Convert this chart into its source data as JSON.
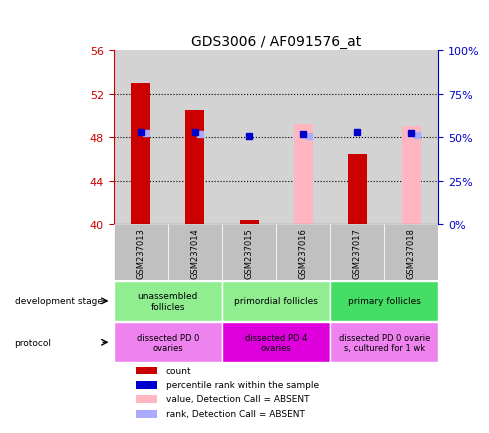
{
  "title": "GDS3006 / AF091576_at",
  "samples": [
    "GSM237013",
    "GSM237014",
    "GSM237015",
    "GSM237016",
    "GSM237017",
    "GSM237018"
  ],
  "ylim_left": [
    40,
    56
  ],
  "ylim_right": [
    0,
    100
  ],
  "yticks_left": [
    40,
    44,
    48,
    52,
    56
  ],
  "yticks_right": [
    0,
    25,
    50,
    75,
    100
  ],
  "ytick_labels_right": [
    "0%",
    "25%",
    "50%",
    "75%",
    "100%"
  ],
  "red_bars": [
    53.0,
    50.5,
    40.4,
    null,
    46.5,
    null
  ],
  "pink_bars": [
    null,
    null,
    null,
    49.2,
    null,
    49.0
  ],
  "blue_squares_y": [
    48.5,
    48.5,
    48.1,
    48.3,
    48.5,
    48.4
  ],
  "light_blue_squares_y": [
    48.4,
    48.35,
    null,
    48.15,
    null,
    48.2
  ],
  "bar_color_red": "#CC0000",
  "bar_color_pink": "#FFB6C1",
  "square_color_blue": "#0000CC",
  "square_color_lightblue": "#AAAAFF",
  "left_axis_color": "#CC0000",
  "right_axis_color": "#0000CC",
  "bg_plot": "#D3D3D3",
  "bg_label": "#C0C0C0",
  "dev_groups": [
    {
      "start": 0,
      "end": 2,
      "label": "unassembled\nfollicles",
      "color": "#90EE90"
    },
    {
      "start": 2,
      "end": 4,
      "label": "primordial follicles",
      "color": "#90EE90"
    },
    {
      "start": 4,
      "end": 6,
      "label": "primary follicles",
      "color": "#44DD66"
    }
  ],
  "prot_groups": [
    {
      "start": 0,
      "end": 2,
      "label": "dissected PD 0\novaries",
      "color": "#EE82EE"
    },
    {
      "start": 2,
      "end": 4,
      "label": "dissected PD 4\novaries",
      "color": "#DD00DD"
    },
    {
      "start": 4,
      "end": 6,
      "label": "dissected PD 0 ovarie\ns, cultured for 1 wk",
      "color": "#EE82EE"
    }
  ],
  "legend_items": [
    {
      "color": "#CC0000",
      "label": "count"
    },
    {
      "color": "#0000CC",
      "label": "percentile rank within the sample"
    },
    {
      "color": "#FFB6C1",
      "label": "value, Detection Call = ABSENT"
    },
    {
      "color": "#AAAAFF",
      "label": "rank, Detection Call = ABSENT"
    }
  ]
}
